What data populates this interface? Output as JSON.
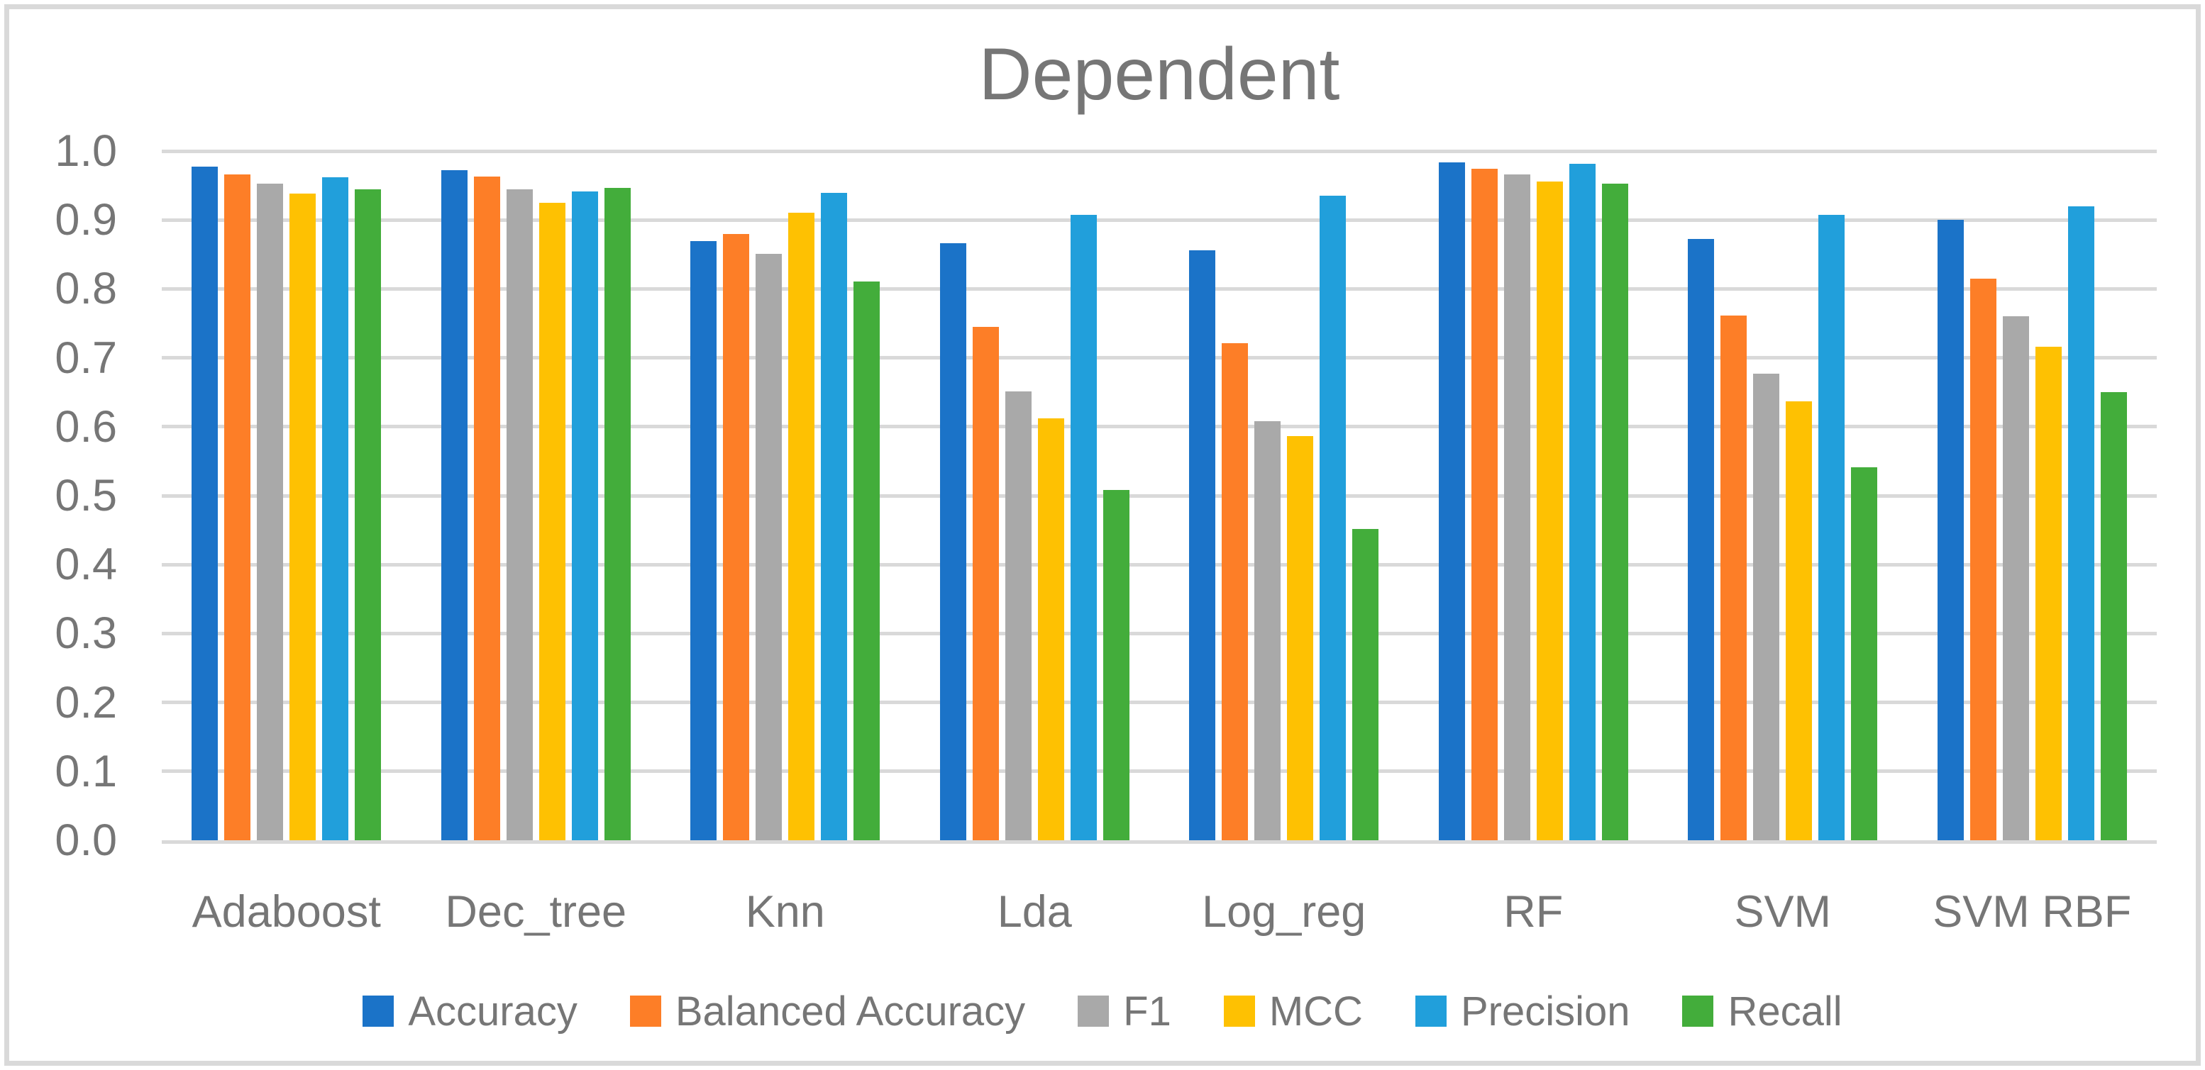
{
  "title": "Dependent",
  "colors": {
    "grid": "#D9D9D9",
    "frame_border": "#D9D9D9",
    "text": "#767676",
    "background": "#FFFFFF"
  },
  "chart_data": {
    "type": "bar",
    "title": "Dependent",
    "categories": [
      "Adaboost",
      "Dec_tree",
      "Knn",
      "Lda",
      "Log_reg",
      "RF",
      "SVM",
      "SVM RBF"
    ],
    "series": [
      {
        "name": "Accuracy",
        "color": "#1B73C8",
        "values": [
          0.977,
          0.972,
          0.869,
          0.866,
          0.856,
          0.984,
          0.872,
          0.9
        ]
      },
      {
        "name": "Balanced Accuracy",
        "color": "#FD7E27",
        "values": [
          0.966,
          0.963,
          0.88,
          0.745,
          0.721,
          0.974,
          0.761,
          0.815
        ]
      },
      {
        "name": "F1",
        "color": "#A9A9A9",
        "values": [
          0.953,
          0.944,
          0.851,
          0.651,
          0.608,
          0.966,
          0.677,
          0.76
        ]
      },
      {
        "name": "MCC",
        "color": "#FEC102",
        "values": [
          0.938,
          0.925,
          0.91,
          0.612,
          0.586,
          0.956,
          0.637,
          0.716
        ]
      },
      {
        "name": "Precision",
        "color": "#219FDB",
        "values": [
          0.962,
          0.941,
          0.939,
          0.907,
          0.935,
          0.981,
          0.907,
          0.92
        ]
      },
      {
        "name": "Recall",
        "color": "#43AD3B",
        "values": [
          0.944,
          0.947,
          0.811,
          0.508,
          0.452,
          0.953,
          0.541,
          0.65
        ]
      }
    ],
    "ylim": [
      0.0,
      1.0
    ],
    "ytick_step": 0.1,
    "ytick_labels": [
      "0.0",
      "0.1",
      "0.2",
      "0.3",
      "0.4",
      "0.5",
      "0.6",
      "0.7",
      "0.8",
      "0.9",
      "1.0"
    ],
    "grid": "horizontal",
    "legend_position": "bottom"
  }
}
